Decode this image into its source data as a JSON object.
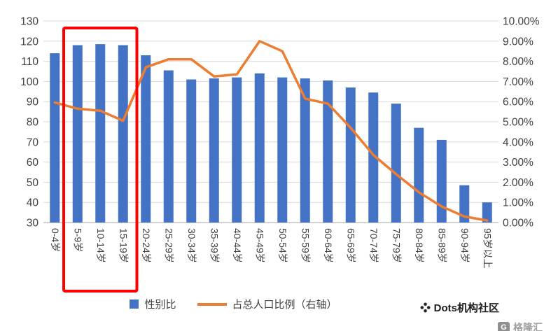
{
  "chart_data": {
    "type": "bar",
    "subtype": "combo-bar-line",
    "title": "",
    "categories": [
      "0-4岁",
      "5-9岁",
      "10-14岁",
      "15-19岁",
      "20-24岁",
      "25-29岁",
      "30-34岁",
      "35-39岁",
      "40-44岁",
      "45-49岁",
      "50-54岁",
      "55-59岁",
      "60-64岁",
      "65-69岁",
      "70-74岁",
      "75-79岁",
      "80-84岁",
      "85-89岁",
      "90-94岁",
      "95岁以上"
    ],
    "series": [
      {
        "name": "性别比",
        "type": "bar",
        "axis": "left",
        "color": "#4472c4",
        "values": [
          114,
          118,
          118.5,
          118,
          113,
          105.5,
          101,
          101.5,
          102,
          104,
          102,
          101.5,
          100.5,
          97,
          94.5,
          89,
          77,
          71,
          48.5,
          40
        ]
      },
      {
        "name": "占总人口比例（右轴）",
        "type": "line",
        "axis": "right",
        "color": "#ed7d31",
        "values": [
          5.95,
          5.65,
          5.55,
          5.05,
          7.7,
          8.1,
          8.1,
          7.25,
          7.35,
          9.0,
          8.5,
          6.15,
          5.9,
          4.7,
          3.35,
          2.4,
          1.5,
          0.8,
          0.3,
          0.1
        ]
      }
    ],
    "left_axis": {
      "min": 30,
      "max": 130,
      "step": 10,
      "labels": [
        "130",
        "120",
        "110",
        "100",
        "90",
        "80",
        "70",
        "60",
        "50",
        "40",
        "30"
      ]
    },
    "right_axis": {
      "min": 0,
      "max": 10,
      "step": 1,
      "labels": [
        "10.00%",
        "9.00%",
        "8.00%",
        "7.00%",
        "6.00%",
        "5.00%",
        "4.00%",
        "3.00%",
        "2.00%",
        "1.00%",
        "0.00%"
      ]
    },
    "highlight": {
      "categories": [
        "5-9岁",
        "10-14岁",
        "15-19岁"
      ],
      "color": "#ff0000"
    },
    "grid": true,
    "legend_position": "bottom"
  },
  "legend": {
    "bar_label": "性别比",
    "line_label": "占总人口比例（右轴）"
  },
  "watermark": {
    "brand": "Dots机构社区",
    "logo2": "格隆汇",
    "logo2_letter": "G"
  },
  "colors": {
    "bar": "#4472c4",
    "line": "#ed7d31",
    "highlight": "#ff0000",
    "grid": "#d9d9d9",
    "axis_line": "#a6a6a6",
    "tick_text": "#404040"
  }
}
